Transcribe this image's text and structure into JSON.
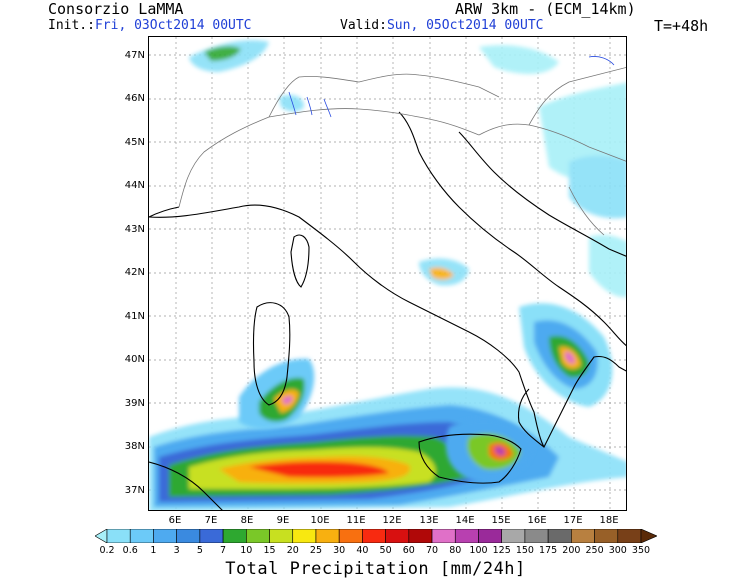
{
  "header": {
    "org": "Consorzio LaMMA",
    "model": "ARW 3km - (ECM_14km)",
    "init_label": "Init.:",
    "init_value": "Fri, 03Oct2014 00UTC",
    "valid_label": "Valid:",
    "valid_value": "Sun, 05Oct2014 00UTC",
    "forecast_step": "T=+48h"
  },
  "map": {
    "lat_labels": [
      "47N",
      "46N",
      "45N",
      "44N",
      "43N",
      "42N",
      "41N",
      "40N",
      "39N",
      "38N",
      "37N"
    ],
    "lon_labels": [
      "6E",
      "7E",
      "8E",
      "9E",
      "10E",
      "11E",
      "12E",
      "13E",
      "14E",
      "15E",
      "16E",
      "17E",
      "18E"
    ],
    "lat_range": [
      36.5,
      47.3
    ],
    "lon_range": [
      5.1,
      18.6
    ]
  },
  "colorbar": {
    "title": "Total Precipitation [mm/24h]",
    "levels": [
      "0.2",
      "0.6",
      "1",
      "3",
      "5",
      "7",
      "10",
      "15",
      "20",
      "25",
      "30",
      "40",
      "50",
      "60",
      "70",
      "80",
      "100",
      "125",
      "150",
      "175",
      "200",
      "250",
      "300",
      "350"
    ],
    "colors": [
      "#a8f0f8",
      "#8ae0f8",
      "#6ccaf8",
      "#4eaaf0",
      "#3a8ae0",
      "#3a6ad8",
      "#2ea830",
      "#7ac828",
      "#c8e020",
      "#f8e810",
      "#f8b010",
      "#f87010",
      "#f82a10",
      "#d81010",
      "#b00808",
      "#e070c8",
      "#b840b0",
      "#9a2a9a",
      "#a8a8a8",
      "#8a8a8a",
      "#6a6a6a",
      "#b88040",
      "#986028",
      "#784018",
      "#5a2a08"
    ]
  }
}
